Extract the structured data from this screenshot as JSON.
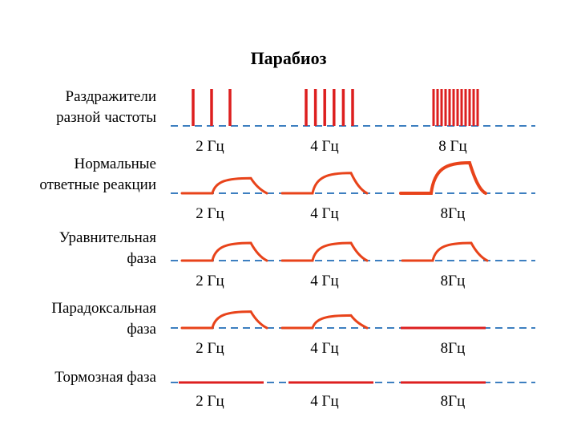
{
  "title": "Парабиоз",
  "colors": {
    "stimulus": "#dd1f1f",
    "response": "#e8431a",
    "baseline": "#3d7fc0",
    "text": "#000000"
  },
  "rows": [
    {
      "label_lines": [
        "Раздражители",
        "разной частоты"
      ],
      "freq_labels": [
        "2 Гц",
        "4 Гц",
        "8 Гц"
      ],
      "cells": [
        {
          "type": "stimulus",
          "count": 3
        },
        {
          "type": "stimulus",
          "count": 6
        },
        {
          "type": "stimulus",
          "count": 12
        }
      ]
    },
    {
      "label_lines": [
        "Нормальные",
        "ответные реакции"
      ],
      "freq_labels": [
        "2 Гц",
        "4 Гц",
        "8Гц"
      ],
      "cells": [
        {
          "type": "response",
          "level": 0.4
        },
        {
          "type": "response",
          "level": 0.6
        },
        {
          "type": "response",
          "level": 1.0
        }
      ]
    },
    {
      "label_lines": [
        "Уравнительная",
        "фаза"
      ],
      "freq_labels": [
        "2 Гц",
        "4 Гц",
        "8Гц"
      ],
      "cells": [
        {
          "type": "response",
          "level": 0.5
        },
        {
          "type": "response",
          "level": 0.5
        },
        {
          "type": "response",
          "level": 0.5
        }
      ]
    },
    {
      "label_lines": [
        "Парадоксальная",
        "фаза"
      ],
      "freq_labels": [
        "2 Гц",
        "4 Гц",
        "8Гц"
      ],
      "cells": [
        {
          "type": "response",
          "level": 0.45
        },
        {
          "type": "response",
          "level": 0.3
        },
        {
          "type": "flat"
        }
      ]
    },
    {
      "label_lines": [
        "Тормозная фаза"
      ],
      "freq_labels": [
        "2 Гц",
        "4 Гц",
        "8Гц"
      ],
      "cells": [
        {
          "type": "flat"
        },
        {
          "type": "flat"
        },
        {
          "type": "flat"
        }
      ]
    }
  ]
}
